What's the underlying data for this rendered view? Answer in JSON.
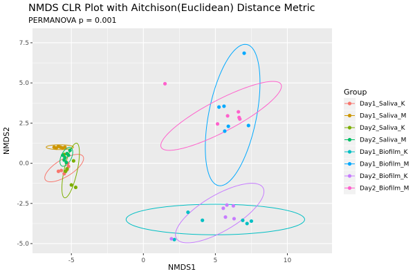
{
  "chart_data": {
    "type": "scatter",
    "title": "NMDS CLR Plot with Aitchison(Euclidean) Distance Metric",
    "subtitle": "PERMANOVA p = 0.001",
    "xlabel": "NMDS1",
    "ylabel": "NMDS2",
    "xlim": [
      -7.7,
      13.1
    ],
    "ylim": [
      -5.6,
      8.4
    ],
    "x_ticks": [
      -5,
      0,
      5,
      10
    ],
    "x_tick_labels": [
      "-5",
      "0",
      "5",
      "10"
    ],
    "y_ticks": [
      -5,
      -2.5,
      0,
      2.5,
      5,
      7.5
    ],
    "y_tick_labels": [
      "-5.0",
      "-2.5",
      "0.0",
      "2.5",
      "5.0",
      "7.5"
    ],
    "grid": true,
    "legend_title": "Group",
    "legend_position": "right",
    "series": [
      {
        "name": "Day1_Saliva_K",
        "color": "#F8766D",
        "points": [
          [
            -5.9,
            -0.5
          ],
          [
            -5.7,
            -0.45
          ],
          [
            -5.5,
            -0.65
          ],
          [
            -5.3,
            -0.4
          ],
          [
            -5.2,
            -0.2
          ],
          [
            -5.25,
            0.0
          ]
        ],
        "ellipse": {
          "cx": -5.5,
          "cy": -0.3,
          "rx": 1.5,
          "ry": 0.55,
          "angle": 28
        }
      },
      {
        "name": "Day1_Saliva_M",
        "color": "#CD9600",
        "points": [
          [
            -6.2,
            1.0
          ],
          [
            -6.05,
            0.95
          ],
          [
            -5.9,
            1.05
          ],
          [
            -5.75,
            1.0
          ],
          [
            -5.6,
            0.95
          ],
          [
            -5.45,
            1.0
          ]
        ],
        "ellipse": {
          "cx": -5.8,
          "cy": 1.0,
          "rx": 0.95,
          "ry": 0.15,
          "angle": 0
        }
      },
      {
        "name": "Day2_Saliva_K",
        "color": "#7CAE00",
        "points": [
          [
            -5.5,
            0.55
          ],
          [
            -5.4,
            -0.5
          ],
          [
            -5.0,
            -1.35
          ],
          [
            -4.7,
            -1.5
          ],
          [
            -4.85,
            0.15
          ],
          [
            -5.3,
            -0.35
          ]
        ],
        "ellipse": {
          "cx": -5.05,
          "cy": -0.45,
          "rx": 1.75,
          "ry": 0.45,
          "angle": 76
        }
      },
      {
        "name": "Day2_Saliva_M",
        "color": "#00BE67",
        "points": [
          [
            -5.6,
            0.5
          ],
          [
            -5.5,
            0.2
          ],
          [
            -5.45,
            0.35
          ],
          [
            -5.3,
            0.6
          ],
          [
            -5.2,
            0.5
          ],
          [
            -5.1,
            0.8
          ],
          [
            -5.35,
            0.05
          ]
        ],
        "ellipse": {
          "cx": -5.35,
          "cy": 0.4,
          "rx": 0.65,
          "ry": 0.35,
          "angle": 60
        }
      },
      {
        "name": "Day1_Biofilm_K",
        "color": "#00BFC4",
        "points": [
          [
            3.1,
            -3.05
          ],
          [
            4.1,
            -3.55
          ],
          [
            6.9,
            -3.55
          ],
          [
            7.2,
            -3.75
          ],
          [
            7.5,
            -3.6
          ],
          [
            2.15,
            -4.75
          ]
        ],
        "ellipse": {
          "cx": 5.0,
          "cy": -3.5,
          "rx": 6.2,
          "ry": 0.95,
          "angle": 0
        }
      },
      {
        "name": "Day1_Biofilm_M",
        "color": "#00A9FF",
        "points": [
          [
            7.0,
            6.85
          ],
          [
            5.25,
            3.5
          ],
          [
            5.6,
            3.55
          ],
          [
            5.9,
            2.3
          ],
          [
            5.65,
            2.0
          ],
          [
            7.3,
            2.35
          ]
        ],
        "ellipse": {
          "cx": 6.2,
          "cy": 3.0,
          "rx": 4.5,
          "ry": 1.65,
          "angle": 77
        }
      },
      {
        "name": "Day2_Biofilm_K",
        "color": "#C77CFF",
        "points": [
          [
            5.55,
            -2.8
          ],
          [
            5.8,
            -2.6
          ],
          [
            6.25,
            -2.65
          ],
          [
            5.7,
            -3.35
          ],
          [
            6.3,
            -3.45
          ],
          [
            1.95,
            -4.7
          ]
        ],
        "ellipse": {
          "cx": 5.3,
          "cy": -3.1,
          "rx": 3.4,
          "ry": 1.15,
          "angle": 27
        }
      },
      {
        "name": "Day2_Biofilm_M",
        "color": "#FF61CC",
        "points": [
          [
            1.5,
            4.95
          ],
          [
            5.85,
            2.95
          ],
          [
            6.6,
            3.2
          ],
          [
            6.65,
            2.85
          ],
          [
            6.7,
            2.75
          ],
          [
            5.15,
            2.45
          ]
        ],
        "ellipse": {
          "cx": 5.4,
          "cy": 2.95,
          "rx": 4.6,
          "ry": 1.0,
          "angle": 25
        }
      }
    ]
  }
}
